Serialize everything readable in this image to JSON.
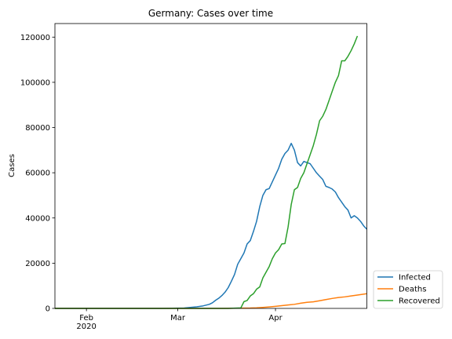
{
  "chart_data": {
    "type": "line",
    "title": "Germany: Cases over time",
    "xlabel": "",
    "ylabel": "Cases",
    "xlim": [
      "2020-01-22",
      "2020-04-30"
    ],
    "ylim": [
      0,
      126000
    ],
    "x_ticks": [
      {
        "date": "2020-02-01",
        "label": "Feb",
        "sublabel": "2020"
      },
      {
        "date": "2020-03-01",
        "label": "Mar",
        "sublabel": ""
      },
      {
        "date": "2020-04-01",
        "label": "Apr",
        "sublabel": ""
      }
    ],
    "y_ticks": [
      0,
      20000,
      40000,
      60000,
      80000,
      100000,
      120000
    ],
    "y_tick_labels": [
      "0",
      "20000",
      "40000",
      "60000",
      "80000",
      "100000",
      "120000"
    ],
    "grid": false,
    "legend_position": "outside-bottom-right",
    "series": [
      {
        "name": "Infected",
        "color": "#1f77b4",
        "points": [
          [
            "2020-01-22",
            0
          ],
          [
            "2020-02-01",
            0
          ],
          [
            "2020-02-15",
            0
          ],
          [
            "2020-02-25",
            20
          ],
          [
            "2020-03-01",
            120
          ],
          [
            "2020-03-03",
            180
          ],
          [
            "2020-03-05",
            450
          ],
          [
            "2020-03-07",
            700
          ],
          [
            "2020-03-09",
            1100
          ],
          [
            "2020-03-11",
            1800
          ],
          [
            "2020-03-12",
            2500
          ],
          [
            "2020-03-13",
            3600
          ],
          [
            "2020-03-14",
            4500
          ],
          [
            "2020-03-15",
            5700
          ],
          [
            "2020-03-16",
            7200
          ],
          [
            "2020-03-17",
            9200
          ],
          [
            "2020-03-18",
            12000
          ],
          [
            "2020-03-19",
            15000
          ],
          [
            "2020-03-20",
            19500
          ],
          [
            "2020-03-21",
            22000
          ],
          [
            "2020-03-22",
            24500
          ],
          [
            "2020-03-23",
            28500
          ],
          [
            "2020-03-24",
            30000
          ],
          [
            "2020-03-25",
            34000
          ],
          [
            "2020-03-26",
            38500
          ],
          [
            "2020-03-27",
            45000
          ],
          [
            "2020-03-28",
            50000
          ],
          [
            "2020-03-29",
            52500
          ],
          [
            "2020-03-30",
            53000
          ],
          [
            "2020-03-31",
            56000
          ],
          [
            "2020-04-01",
            59000
          ],
          [
            "2020-04-02",
            62000
          ],
          [
            "2020-04-03",
            66000
          ],
          [
            "2020-04-04",
            68500
          ],
          [
            "2020-04-05",
            70000
          ],
          [
            "2020-04-06",
            73000
          ],
          [
            "2020-04-07",
            70000
          ],
          [
            "2020-04-08",
            64500
          ],
          [
            "2020-04-09",
            63000
          ],
          [
            "2020-04-10",
            65000
          ],
          [
            "2020-04-11",
            64500
          ],
          [
            "2020-04-12",
            64000
          ],
          [
            "2020-04-13",
            62000
          ],
          [
            "2020-04-14",
            60000
          ],
          [
            "2020-04-15",
            58500
          ],
          [
            "2020-04-16",
            57000
          ],
          [
            "2020-04-17",
            54000
          ],
          [
            "2020-04-18",
            53500
          ],
          [
            "2020-04-19",
            52800
          ],
          [
            "2020-04-20",
            51500
          ],
          [
            "2020-04-21",
            49000
          ],
          [
            "2020-04-22",
            47000
          ],
          [
            "2020-04-23",
            45000
          ],
          [
            "2020-04-24",
            43500
          ],
          [
            "2020-04-25",
            40000
          ],
          [
            "2020-04-26",
            41000
          ],
          [
            "2020-04-27",
            40000
          ],
          [
            "2020-04-28",
            38500
          ],
          [
            "2020-04-29",
            36500
          ],
          [
            "2020-04-30",
            35000
          ]
        ]
      },
      {
        "name": "Deaths",
        "color": "#ff7f0e",
        "points": [
          [
            "2020-01-22",
            0
          ],
          [
            "2020-03-08",
            0
          ],
          [
            "2020-03-15",
            12
          ],
          [
            "2020-03-20",
            70
          ],
          [
            "2020-03-22",
            120
          ],
          [
            "2020-03-24",
            160
          ],
          [
            "2020-03-26",
            260
          ],
          [
            "2020-03-28",
            430
          ],
          [
            "2020-03-30",
            650
          ],
          [
            "2020-04-01",
            900
          ],
          [
            "2020-04-03",
            1200
          ],
          [
            "2020-04-05",
            1500
          ],
          [
            "2020-04-07",
            1800
          ],
          [
            "2020-04-09",
            2300
          ],
          [
            "2020-04-11",
            2700
          ],
          [
            "2020-04-13",
            2900
          ],
          [
            "2020-04-15",
            3400
          ],
          [
            "2020-04-17",
            3900
          ],
          [
            "2020-04-19",
            4400
          ],
          [
            "2020-04-21",
            4800
          ],
          [
            "2020-04-23",
            5100
          ],
          [
            "2020-04-25",
            5500
          ],
          [
            "2020-04-27",
            5900
          ],
          [
            "2020-04-30",
            6500
          ]
        ]
      },
      {
        "name": "Recovered",
        "color": "#2ca02c",
        "points": [
          [
            "2020-01-22",
            0
          ],
          [
            "2020-03-17",
            0
          ],
          [
            "2020-03-21",
            200
          ],
          [
            "2020-03-22",
            3000
          ],
          [
            "2020-03-23",
            3500
          ],
          [
            "2020-03-24",
            5500
          ],
          [
            "2020-03-25",
            6500
          ],
          [
            "2020-03-26",
            8500
          ],
          [
            "2020-03-27",
            9500
          ],
          [
            "2020-03-28",
            13500
          ],
          [
            "2020-03-29",
            16000
          ],
          [
            "2020-03-30",
            18500
          ],
          [
            "2020-03-31",
            22000
          ],
          [
            "2020-04-01",
            24500
          ],
          [
            "2020-04-02",
            26000
          ],
          [
            "2020-04-03",
            28500
          ],
          [
            "2020-04-04",
            28700
          ],
          [
            "2020-04-05",
            36000
          ],
          [
            "2020-04-06",
            46000
          ],
          [
            "2020-04-07",
            52500
          ],
          [
            "2020-04-08",
            53500
          ],
          [
            "2020-04-09",
            57500
          ],
          [
            "2020-04-10",
            60000
          ],
          [
            "2020-04-11",
            64000
          ],
          [
            "2020-04-12",
            68000
          ],
          [
            "2020-04-13",
            72000
          ],
          [
            "2020-04-14",
            77000
          ],
          [
            "2020-04-15",
            83000
          ],
          [
            "2020-04-16",
            85000
          ],
          [
            "2020-04-17",
            88000
          ],
          [
            "2020-04-18",
            92000
          ],
          [
            "2020-04-19",
            96000
          ],
          [
            "2020-04-20",
            100000
          ],
          [
            "2020-04-21",
            103000
          ],
          [
            "2020-04-22",
            109500
          ],
          [
            "2020-04-23",
            109500
          ],
          [
            "2020-04-24",
            111500
          ],
          [
            "2020-04-25",
            114000
          ],
          [
            "2020-04-26",
            117000
          ],
          [
            "2020-04-27",
            120500
          ]
        ]
      }
    ]
  }
}
